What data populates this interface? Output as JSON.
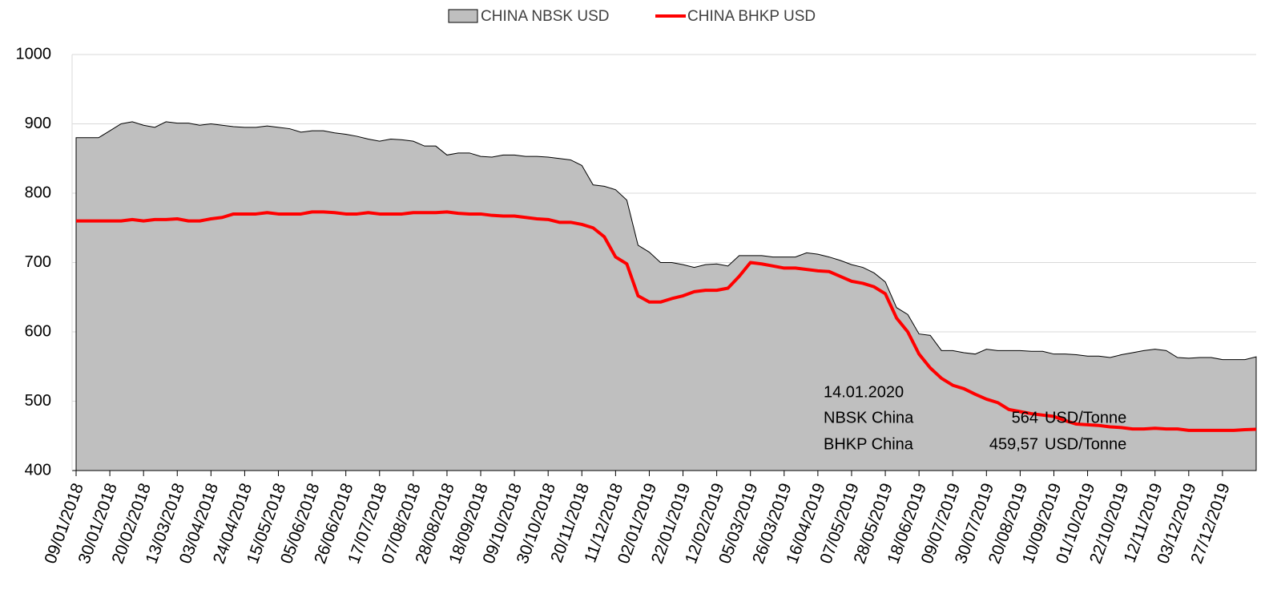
{
  "chart_data": {
    "type": "area-line",
    "categories": [
      "09/01/2018",
      null,
      null,
      "30/01/2018",
      null,
      null,
      "20/02/2018",
      null,
      null,
      "13/03/2018",
      null,
      null,
      "03/04/2018",
      null,
      null,
      "24/04/2018",
      null,
      null,
      "15/05/2018",
      null,
      null,
      "05/06/2018",
      null,
      null,
      "26/06/2018",
      null,
      null,
      "17/07/2018",
      null,
      null,
      "07/08/2018",
      null,
      null,
      "28/08/2018",
      null,
      null,
      "18/09/2018",
      null,
      null,
      "09/10/2018",
      null,
      null,
      "30/10/2018",
      null,
      null,
      "20/11/2018",
      null,
      null,
      "11/12/2018",
      null,
      null,
      "02/01/2019",
      null,
      null,
      "22/01/2019",
      null,
      null,
      "12/02/2019",
      null,
      null,
      "05/03/2019",
      null,
      null,
      "26/03/2019",
      null,
      null,
      "16/04/2019",
      null,
      null,
      "07/05/2019",
      null,
      null,
      "28/05/2019",
      null,
      null,
      "18/06/2019",
      null,
      null,
      "09/07/2019",
      null,
      null,
      "30/07/2019",
      null,
      null,
      "20/08/2019",
      null,
      null,
      "10/09/2019",
      null,
      null,
      "01/10/2019",
      null,
      null,
      "22/10/2019",
      null,
      null,
      "12/11/2019",
      null,
      null,
      "03/12/2019",
      null,
      null,
      "27/12/2019",
      null,
      null,
      null
    ],
    "series": [
      {
        "name": "CHINA NBSK USD",
        "kind": "area",
        "color": "#bfbfbf",
        "values": [
          880,
          880,
          880,
          890,
          900,
          903,
          898,
          895,
          903,
          901,
          901,
          898,
          900,
          898,
          896,
          895,
          895,
          897,
          895,
          893,
          888,
          890,
          890,
          887,
          885,
          882,
          878,
          875,
          878,
          877,
          875,
          868,
          868,
          855,
          858,
          858,
          853,
          852,
          855,
          855,
          853,
          853,
          852,
          850,
          848,
          840,
          812,
          810,
          805,
          790,
          725,
          715,
          700,
          700,
          697,
          693,
          697,
          698,
          695,
          710,
          710,
          710,
          708,
          708,
          708,
          714,
          712,
          708,
          703,
          697,
          693,
          685,
          672,
          635,
          625,
          597,
          595,
          573,
          573,
          570,
          568,
          575,
          573,
          573,
          573,
          572,
          572,
          568,
          568,
          567,
          565,
          565,
          563,
          567,
          570,
          573,
          575,
          573,
          563,
          562,
          563,
          563,
          560,
          560,
          560,
          564
        ]
      },
      {
        "name": "CHINA BHKP USD",
        "kind": "line",
        "color": "#ff0000",
        "values": [
          760,
          760,
          760,
          760,
          760,
          762,
          760,
          762,
          762,
          763,
          760,
          760,
          763,
          765,
          770,
          770,
          770,
          772,
          770,
          770,
          770,
          773,
          773,
          772,
          770,
          770,
          772,
          770,
          770,
          770,
          772,
          772,
          772,
          773,
          771,
          770,
          770,
          768,
          767,
          767,
          765,
          763,
          762,
          758,
          758,
          755,
          750,
          737,
          708,
          698,
          652,
          643,
          643,
          648,
          652,
          658,
          660,
          660,
          663,
          680,
          700,
          698,
          695,
          692,
          692,
          690,
          688,
          687,
          680,
          673,
          670,
          665,
          655,
          620,
          600,
          568,
          548,
          533,
          523,
          518,
          510,
          503,
          498,
          488,
          485,
          482,
          480,
          478,
          472,
          467,
          466,
          465,
          463,
          462,
          460,
          460,
          461,
          460,
          460,
          458,
          458,
          458,
          458,
          458,
          459,
          459.57
        ]
      }
    ],
    "ylim": [
      400,
      1000
    ],
    "yticks": [
      400,
      500,
      600,
      700,
      800,
      900,
      1000
    ],
    "grid": true,
    "annotation": {
      "date": "14.01.2020",
      "rows": [
        {
          "name": "NBSK China",
          "value": "564",
          "unit": "USD/Tonne"
        },
        {
          "name": "BHKP China",
          "value": "459,57",
          "unit": "USD/Tonne"
        }
      ]
    }
  }
}
